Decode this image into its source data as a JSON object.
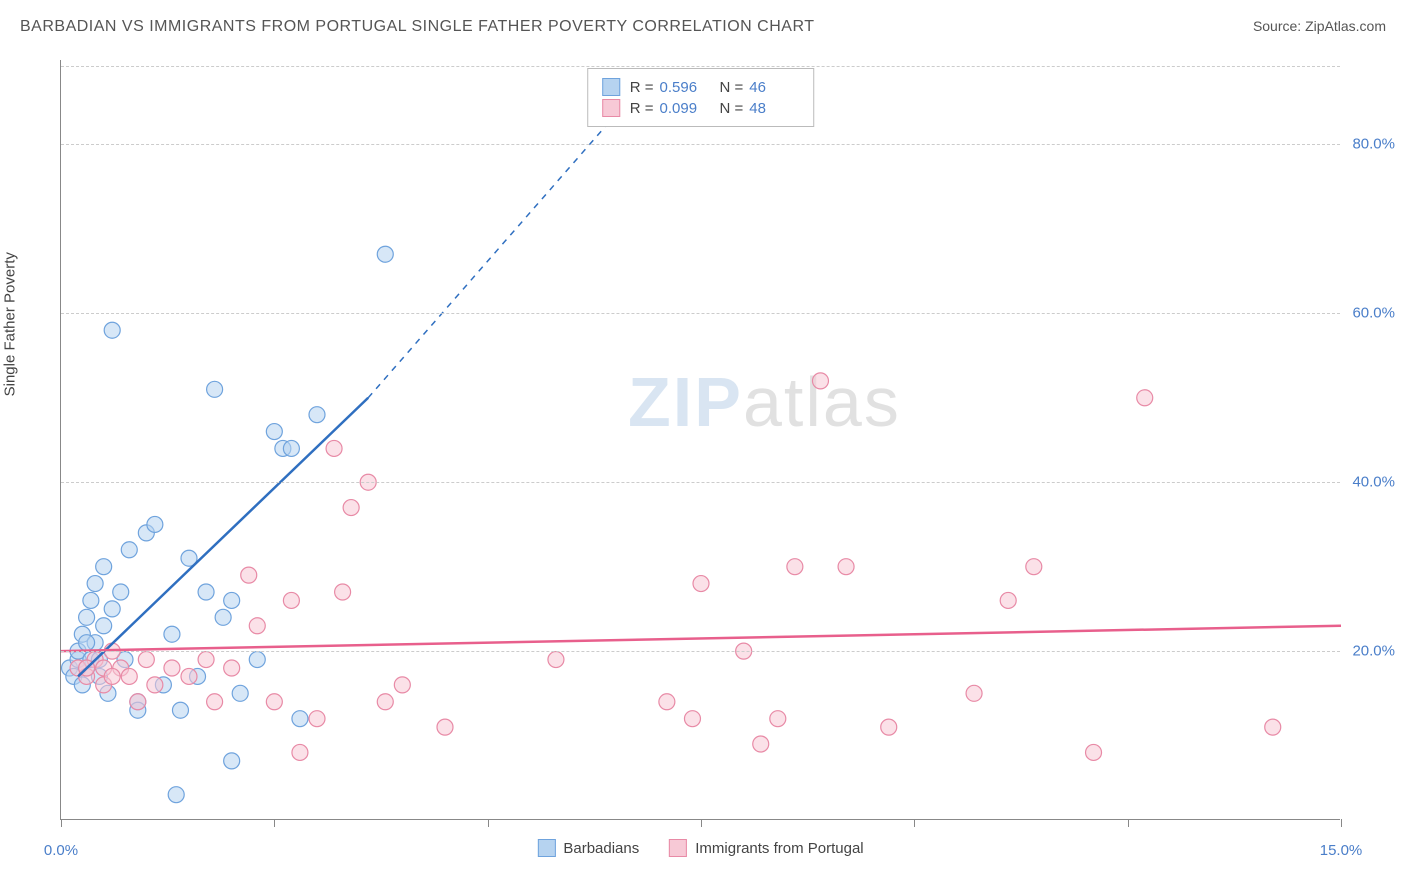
{
  "title": "BARBADIAN VS IMMIGRANTS FROM PORTUGAL SINGLE FATHER POVERTY CORRELATION CHART",
  "source": "Source: ZipAtlas.com",
  "ylabel": "Single Father Poverty",
  "watermark": {
    "zip": "ZIP",
    "atlas": "atlas"
  },
  "chart": {
    "type": "scatter",
    "background_color": "#ffffff",
    "grid_color": "#cccccc",
    "axis_color": "#888888",
    "label_color": "#4a7ec9",
    "xlim": [
      0,
      15
    ],
    "ylim": [
      0,
      90
    ],
    "y_gridlines": [
      20,
      40,
      60,
      80
    ],
    "y_tick_labels": [
      "20.0%",
      "40.0%",
      "60.0%",
      "80.0%"
    ],
    "x_ticks": [
      0,
      2.5,
      5,
      7.5,
      10,
      12.5,
      15
    ],
    "x_tick_labels_shown": {
      "0": "0.0%",
      "15": "15.0%"
    },
    "series": [
      {
        "name": "Barbadians",
        "color_fill": "#b6d3f0",
        "color_stroke": "#6fa3dd",
        "marker_radius": 8,
        "fill_opacity": 0.55,
        "R": "0.596",
        "N": "46",
        "trend": {
          "x1": 0.2,
          "y1": 17,
          "x2": 3.6,
          "y2": 50,
          "dash_x2": 6.8,
          "dash_y2": 87,
          "color": "#2f6fc0",
          "width": 2.5
        },
        "points": [
          [
            0.1,
            18
          ],
          [
            0.15,
            17
          ],
          [
            0.2,
            19
          ],
          [
            0.2,
            20
          ],
          [
            0.25,
            16
          ],
          [
            0.25,
            22
          ],
          [
            0.3,
            18
          ],
          [
            0.3,
            24
          ],
          [
            0.35,
            19
          ],
          [
            0.35,
            26
          ],
          [
            0.4,
            21
          ],
          [
            0.4,
            28
          ],
          [
            0.45,
            17
          ],
          [
            0.5,
            23
          ],
          [
            0.5,
            30
          ],
          [
            0.55,
            15
          ],
          [
            0.6,
            25
          ],
          [
            0.6,
            58
          ],
          [
            0.7,
            27
          ],
          [
            0.75,
            19
          ],
          [
            0.8,
            32
          ],
          [
            0.9,
            14
          ],
          [
            1.0,
            34
          ],
          [
            1.1,
            35
          ],
          [
            1.2,
            16
          ],
          [
            1.3,
            22
          ],
          [
            1.35,
            3
          ],
          [
            1.4,
            13
          ],
          [
            1.5,
            31
          ],
          [
            1.6,
            17
          ],
          [
            1.7,
            27
          ],
          [
            1.8,
            51
          ],
          [
            1.9,
            24
          ],
          [
            2.0,
            26
          ],
          [
            2.0,
            7
          ],
          [
            2.1,
            15
          ],
          [
            2.3,
            19
          ],
          [
            2.5,
            46
          ],
          [
            2.6,
            44
          ],
          [
            2.7,
            44
          ],
          [
            2.8,
            12
          ],
          [
            3.0,
            48
          ],
          [
            3.8,
            67
          ],
          [
            0.9,
            13
          ],
          [
            0.45,
            19
          ],
          [
            0.3,
            21
          ]
        ]
      },
      {
        "name": "Immigrants from Portugal",
        "color_fill": "#f7c9d6",
        "color_stroke": "#e88aa6",
        "marker_radius": 8,
        "fill_opacity": 0.55,
        "R": "0.099",
        "N": "48",
        "trend": {
          "x1": 0,
          "y1": 20,
          "x2": 15,
          "y2": 23,
          "color": "#e85f8c",
          "width": 2.5
        },
        "points": [
          [
            0.2,
            18
          ],
          [
            0.3,
            17
          ],
          [
            0.4,
            19
          ],
          [
            0.5,
            16
          ],
          [
            0.6,
            20
          ],
          [
            0.7,
            18
          ],
          [
            0.8,
            17
          ],
          [
            0.9,
            14
          ],
          [
            1.0,
            19
          ],
          [
            1.1,
            16
          ],
          [
            1.3,
            18
          ],
          [
            1.5,
            17
          ],
          [
            1.7,
            19
          ],
          [
            1.8,
            14
          ],
          [
            2.0,
            18
          ],
          [
            2.2,
            29
          ],
          [
            2.3,
            23
          ],
          [
            2.5,
            14
          ],
          [
            2.7,
            26
          ],
          [
            2.8,
            8
          ],
          [
            3.0,
            12
          ],
          [
            3.2,
            44
          ],
          [
            3.3,
            27
          ],
          [
            3.4,
            37
          ],
          [
            3.6,
            40
          ],
          [
            3.8,
            14
          ],
          [
            4.0,
            16
          ],
          [
            4.5,
            11
          ],
          [
            5.8,
            19
          ],
          [
            7.1,
            14
          ],
          [
            7.4,
            12
          ],
          [
            7.5,
            28
          ],
          [
            8.0,
            20
          ],
          [
            8.2,
            9
          ],
          [
            8.4,
            12
          ],
          [
            8.6,
            30
          ],
          [
            8.9,
            52
          ],
          [
            9.2,
            30
          ],
          [
            9.7,
            11
          ],
          [
            10.7,
            15
          ],
          [
            11.1,
            26
          ],
          [
            11.4,
            30
          ],
          [
            12.1,
            8
          ],
          [
            12.7,
            50
          ],
          [
            14.2,
            11
          ],
          [
            0.5,
            18
          ],
          [
            0.6,
            17
          ],
          [
            0.3,
            18
          ]
        ]
      }
    ],
    "legend_bottom": [
      "Barbadians",
      "Immigrants from Portugal"
    ]
  }
}
